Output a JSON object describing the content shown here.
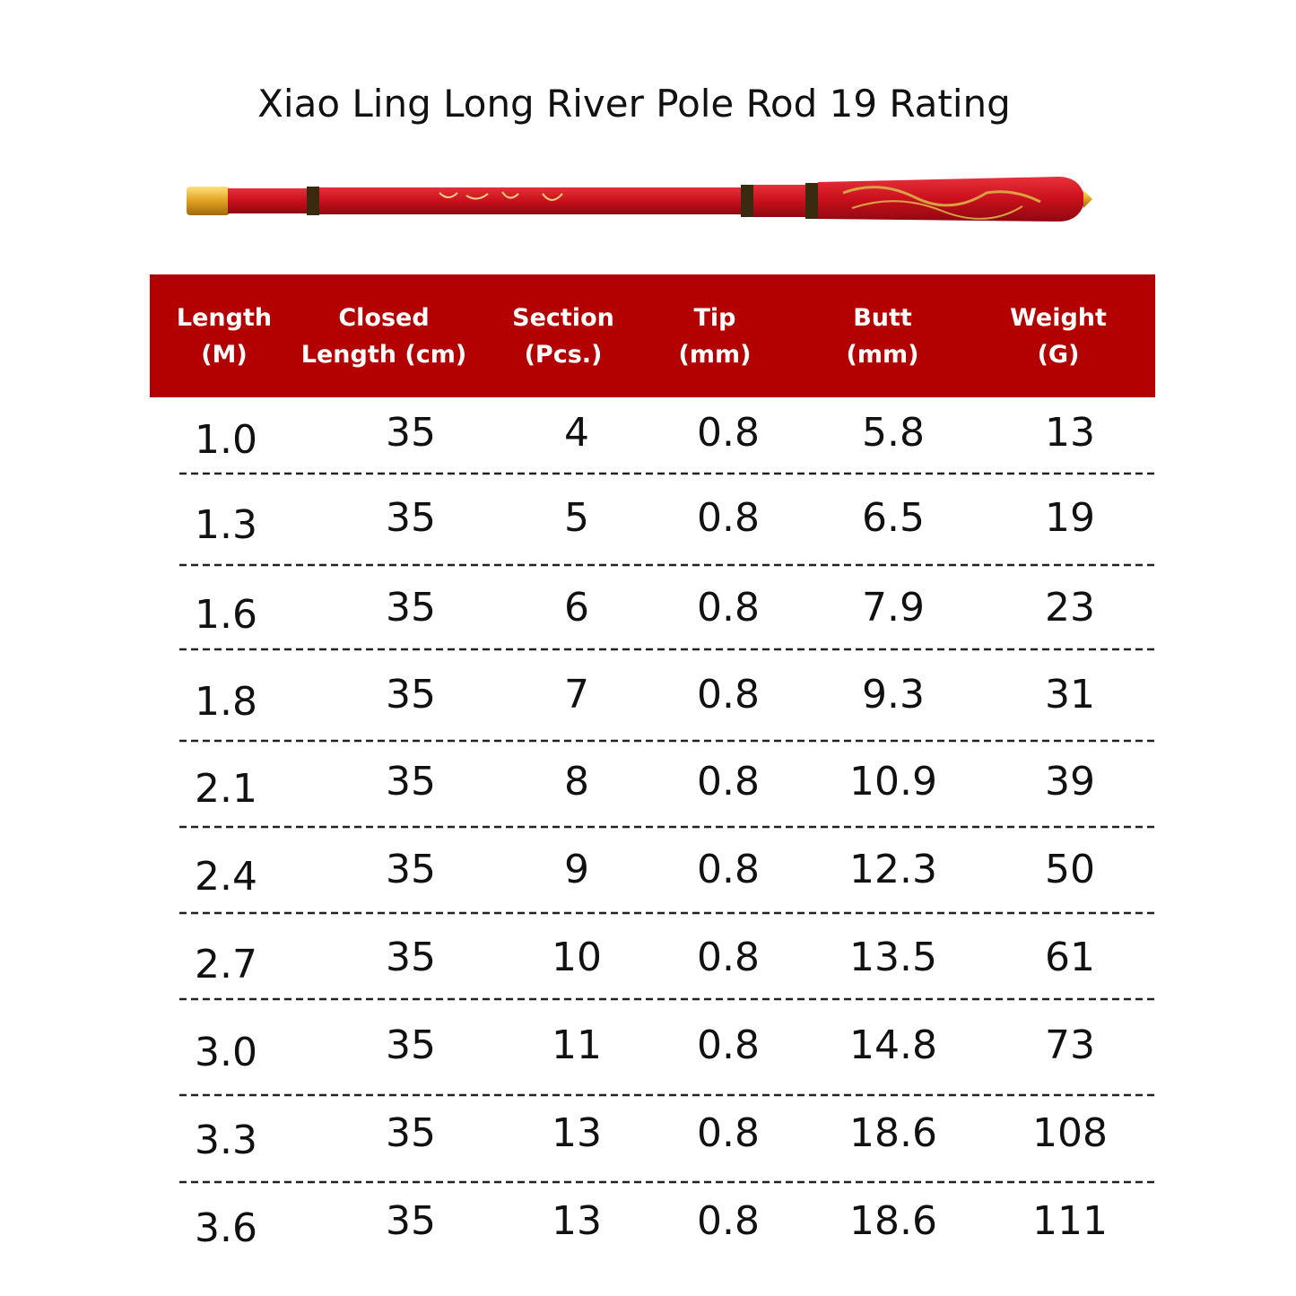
{
  "title": "Xiao Ling Long River Pole Rod 19 Rating",
  "table": {
    "header": [
      [
        "Length",
        "(M)"
      ],
      [
        "Closed",
        "Length (cm)"
      ],
      [
        "Section",
        "(Pcs.)"
      ],
      [
        "Tip",
        "(mm)"
      ],
      [
        "Butt",
        "(mm)"
      ],
      [
        "Weight",
        "(G)"
      ]
    ],
    "rows": [
      [
        "1.0",
        "35",
        "4",
        "0.8",
        "5.8",
        "13"
      ],
      [
        "1.3",
        "35",
        "5",
        "0.8",
        "6.5",
        "19"
      ],
      [
        "1.6",
        "35",
        "6",
        "0.8",
        "7.9",
        "23"
      ],
      [
        "1.8",
        "35",
        "7",
        "0.8",
        "9.3",
        "31"
      ],
      [
        "2.1",
        "35",
        "8",
        "0.8",
        "10.9",
        "39"
      ],
      [
        "2.4",
        "35",
        "9",
        "0.8",
        "12.3",
        "50"
      ],
      [
        "2.7",
        "35",
        "10",
        "0.8",
        "13.5",
        "61"
      ],
      [
        "3.0",
        "35",
        "11",
        "0.8",
        "14.8",
        "73"
      ],
      [
        "3.3",
        "35",
        "13",
        "0.8",
        "18.6",
        "108"
      ],
      [
        "3.6",
        "35",
        "13",
        "0.8",
        "18.6",
        "111"
      ]
    ]
  }
}
